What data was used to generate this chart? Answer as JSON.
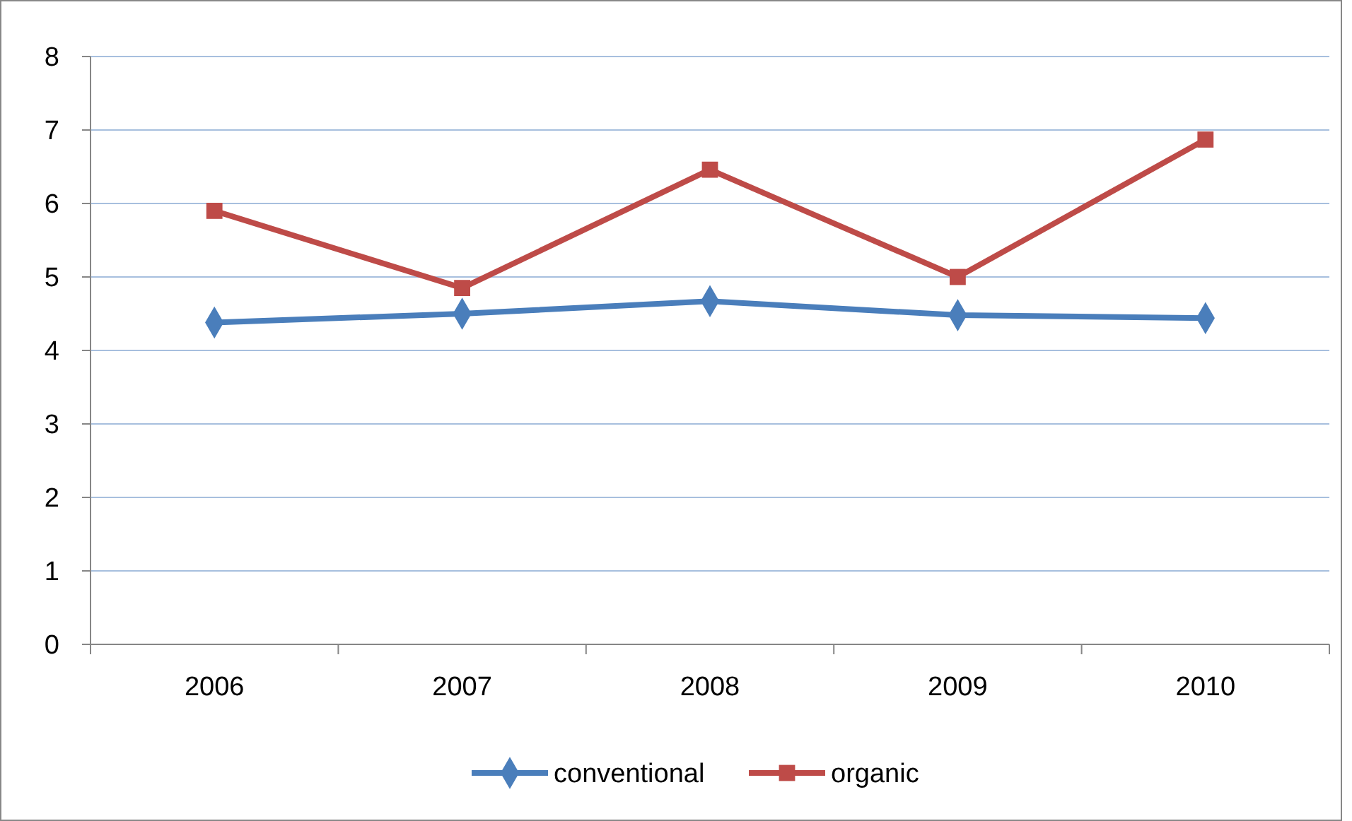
{
  "chart_data": {
    "type": "line",
    "categories": [
      "2006",
      "2007",
      "2008",
      "2009",
      "2010"
    ],
    "series": [
      {
        "name": "conventional",
        "color": "#4a7ebb",
        "marker": "diamond",
        "values": [
          4.38,
          4.5,
          4.67,
          4.48,
          4.44
        ]
      },
      {
        "name": "organic",
        "color": "#be4b48",
        "marker": "square",
        "values": [
          5.9,
          4.85,
          6.46,
          5.0,
          6.87
        ]
      }
    ],
    "ylim": [
      0,
      8
    ],
    "yticks": [
      0,
      1,
      2,
      3,
      4,
      5,
      6,
      7,
      8
    ],
    "grid": "y",
    "legend": "bottom"
  }
}
